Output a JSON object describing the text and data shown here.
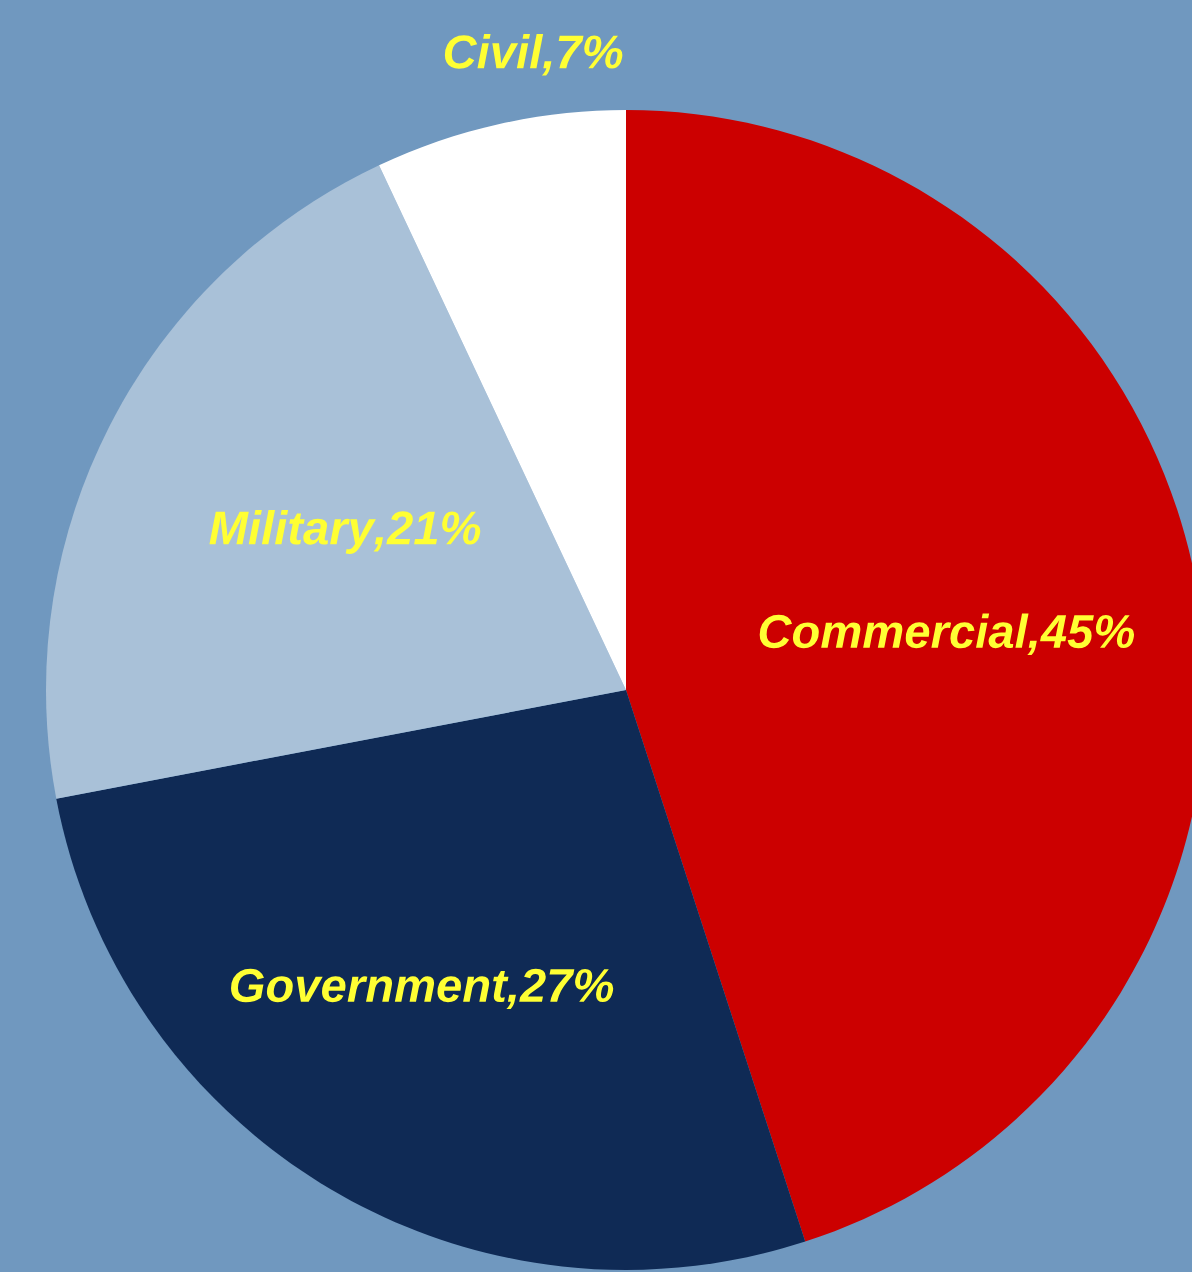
{
  "chart_data": {
    "type": "pie",
    "categories": [
      "Commercial",
      "Government",
      "Military",
      "Civil"
    ],
    "value_labels": [
      ",45%",
      ",27%",
      ",21%",
      ",7%"
    ],
    "values": [
      45,
      27,
      21,
      7
    ],
    "colors": [
      "#cc0000",
      "#0f2a55",
      "#a9c1d8",
      "#ffffff"
    ]
  }
}
